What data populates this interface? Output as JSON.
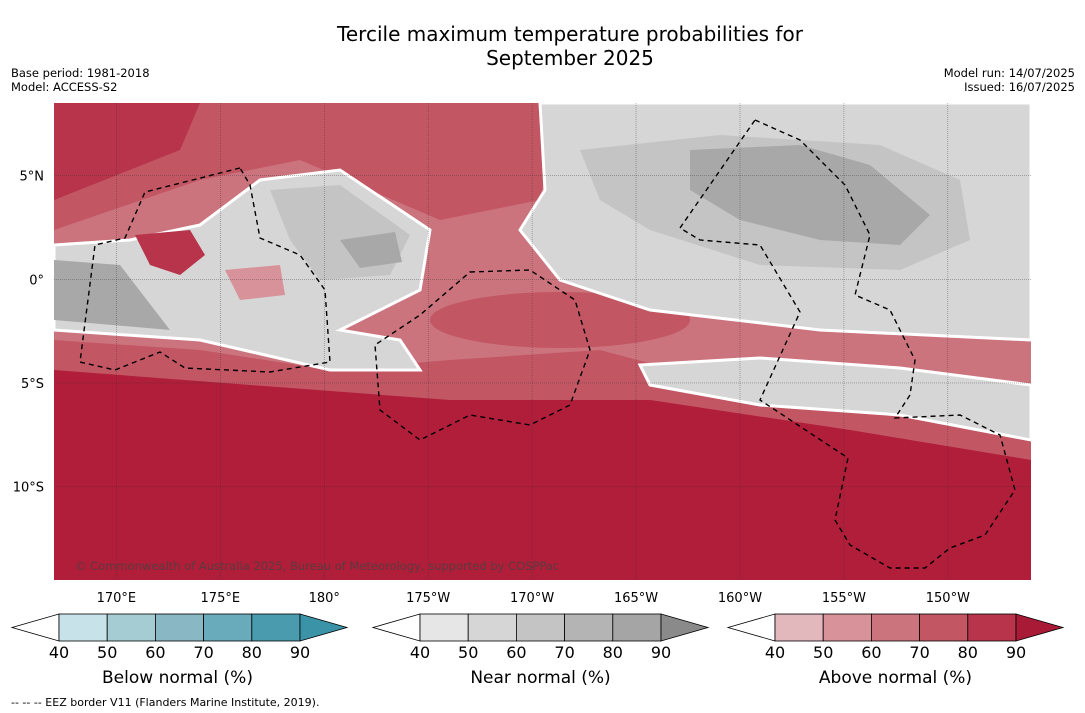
{
  "title_line1": "Tercile maximum temperature probabilities for",
  "title_line2": "September 2025",
  "meta_left": [
    "Base period: 1981-2018",
    "Model: ACCESS-S2"
  ],
  "meta_right": [
    "Model run: 14/07/2025",
    "Issued: 16/07/2025"
  ],
  "copyright": "© Commonwealth of Australia 2025, Bureau of Meteorology, supported by COSPPac",
  "footnote": "--  --  -- EEZ border V11 (Flanders Marine Institute, 2019).",
  "chart_data": {
    "type": "heatmap",
    "title": "Tercile maximum temperature probabilities for September 2025",
    "x_axis": {
      "ticks": [
        "170°E",
        "175°E",
        "180°",
        "175°W",
        "170°W",
        "165°W",
        "160°W",
        "155°W",
        "150°W"
      ],
      "tick_values": [
        170,
        175,
        180,
        185,
        190,
        195,
        200,
        205,
        210
      ],
      "range": [
        167,
        214
      ]
    },
    "y_axis": {
      "ticks": [
        "5°N",
        "0°",
        "5°S",
        "10°S"
      ],
      "tick_values": [
        5,
        0,
        -5,
        -10
      ],
      "range": [
        -14.5,
        8.5
      ]
    },
    "grid": true,
    "colorbars": [
      {
        "label": "Below normal (%)",
        "ticks": [
          40,
          50,
          60,
          70,
          80,
          90
        ],
        "colors": [
          "#c8e2ea",
          "#a5cbd3",
          "#89b7c4",
          "#6aabbb",
          "#4a9bae",
          "#3b93a8"
        ]
      },
      {
        "label": "Near normal (%)",
        "ticks": [
          40,
          50,
          60,
          70,
          80,
          90
        ],
        "colors": [
          "#e6e6e6",
          "#d6d6d6",
          "#c4c4c4",
          "#b4b4b4",
          "#a5a5a5",
          "#8a8a8a"
        ]
      },
      {
        "label": "Above normal (%)",
        "ticks": [
          40,
          50,
          60,
          70,
          80,
          90
        ],
        "colors": [
          "#e2b8bd",
          "#d8939a",
          "#cc747e",
          "#c25663",
          "#b8344a",
          "#a81a36"
        ]
      }
    ]
  }
}
